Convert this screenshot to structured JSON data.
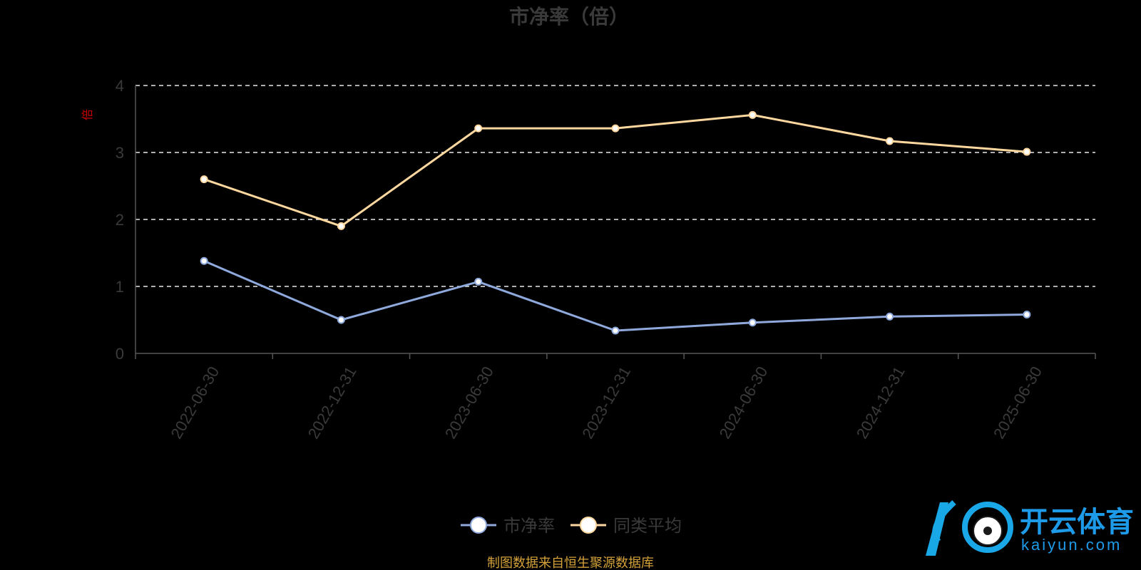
{
  "chart_data": {
    "type": "line",
    "title": "市净率（倍）",
    "ylabel": "倍",
    "ylim": [
      0,
      4
    ],
    "yticks": [
      0,
      1,
      2,
      3,
      4
    ],
    "grid": true,
    "legend_position": "bottom-center",
    "categories": [
      "2022-06-30",
      "2022-12-31",
      "2023-06-30",
      "2023-12-31",
      "2024-06-30",
      "2024-12-31",
      "2025-06-30"
    ],
    "series": [
      {
        "name": "市净率",
        "color": "#8fa9dc",
        "values": [
          1.38,
          0.5,
          1.07,
          0.34,
          0.46,
          0.55,
          0.58
        ]
      },
      {
        "name": "同类平均",
        "color": "#ffd8a0",
        "values": [
          2.6,
          1.9,
          3.36,
          3.36,
          3.56,
          3.17,
          3.01
        ]
      }
    ]
  },
  "footer": {
    "source": "制图数据来自恒生聚源数据库"
  },
  "watermark": {
    "brand_cn": "开云体育",
    "brand_en": "kaiyun.com"
  }
}
